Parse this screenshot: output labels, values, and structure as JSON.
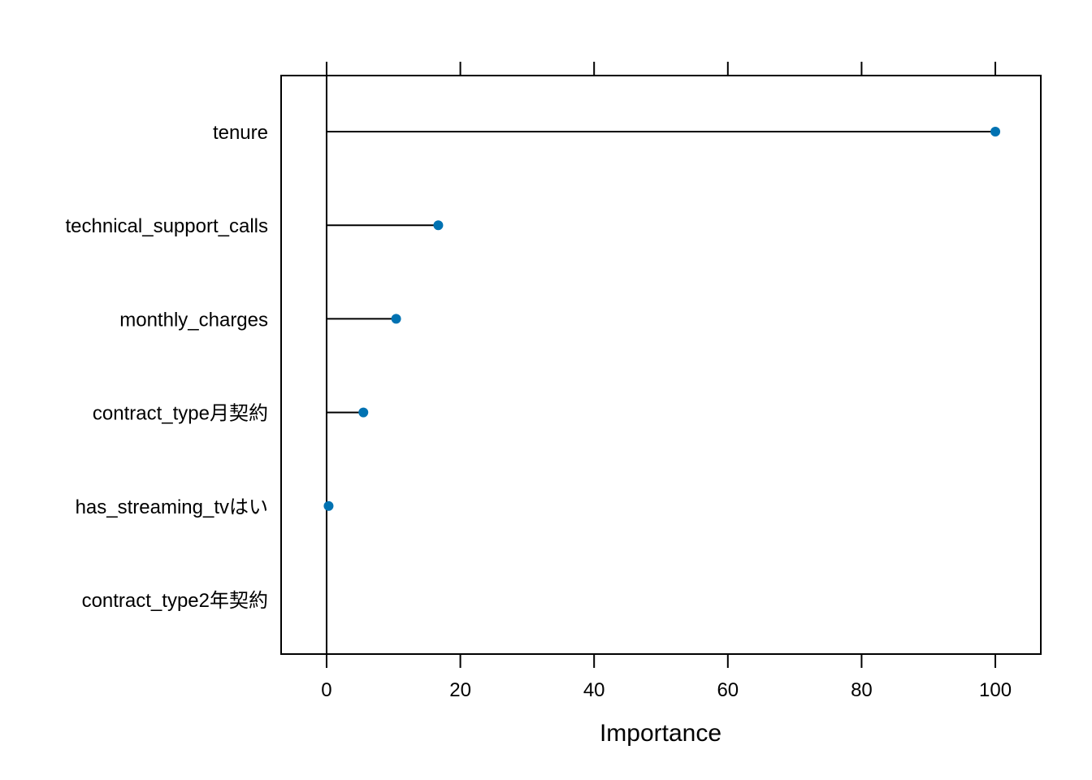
{
  "chart_data": {
    "type": "dot",
    "orientation": "horizontal",
    "categories": [
      "tenure",
      "technical_support_calls",
      "monthly_charges",
      "contract_type月契約",
      "has_streaming_tvはい",
      "contract_type2年契約"
    ],
    "values": [
      100,
      16.7,
      10.4,
      5.5,
      0.3,
      0
    ],
    "xlabel": "Importance",
    "ylabel": "",
    "xlim": [
      -6.8,
      106.8
    ],
    "xticks": [
      0,
      20,
      40,
      60,
      80,
      100
    ],
    "grid": false,
    "legend": "none",
    "point_color": "#0072B2",
    "line_color": "#000000"
  }
}
